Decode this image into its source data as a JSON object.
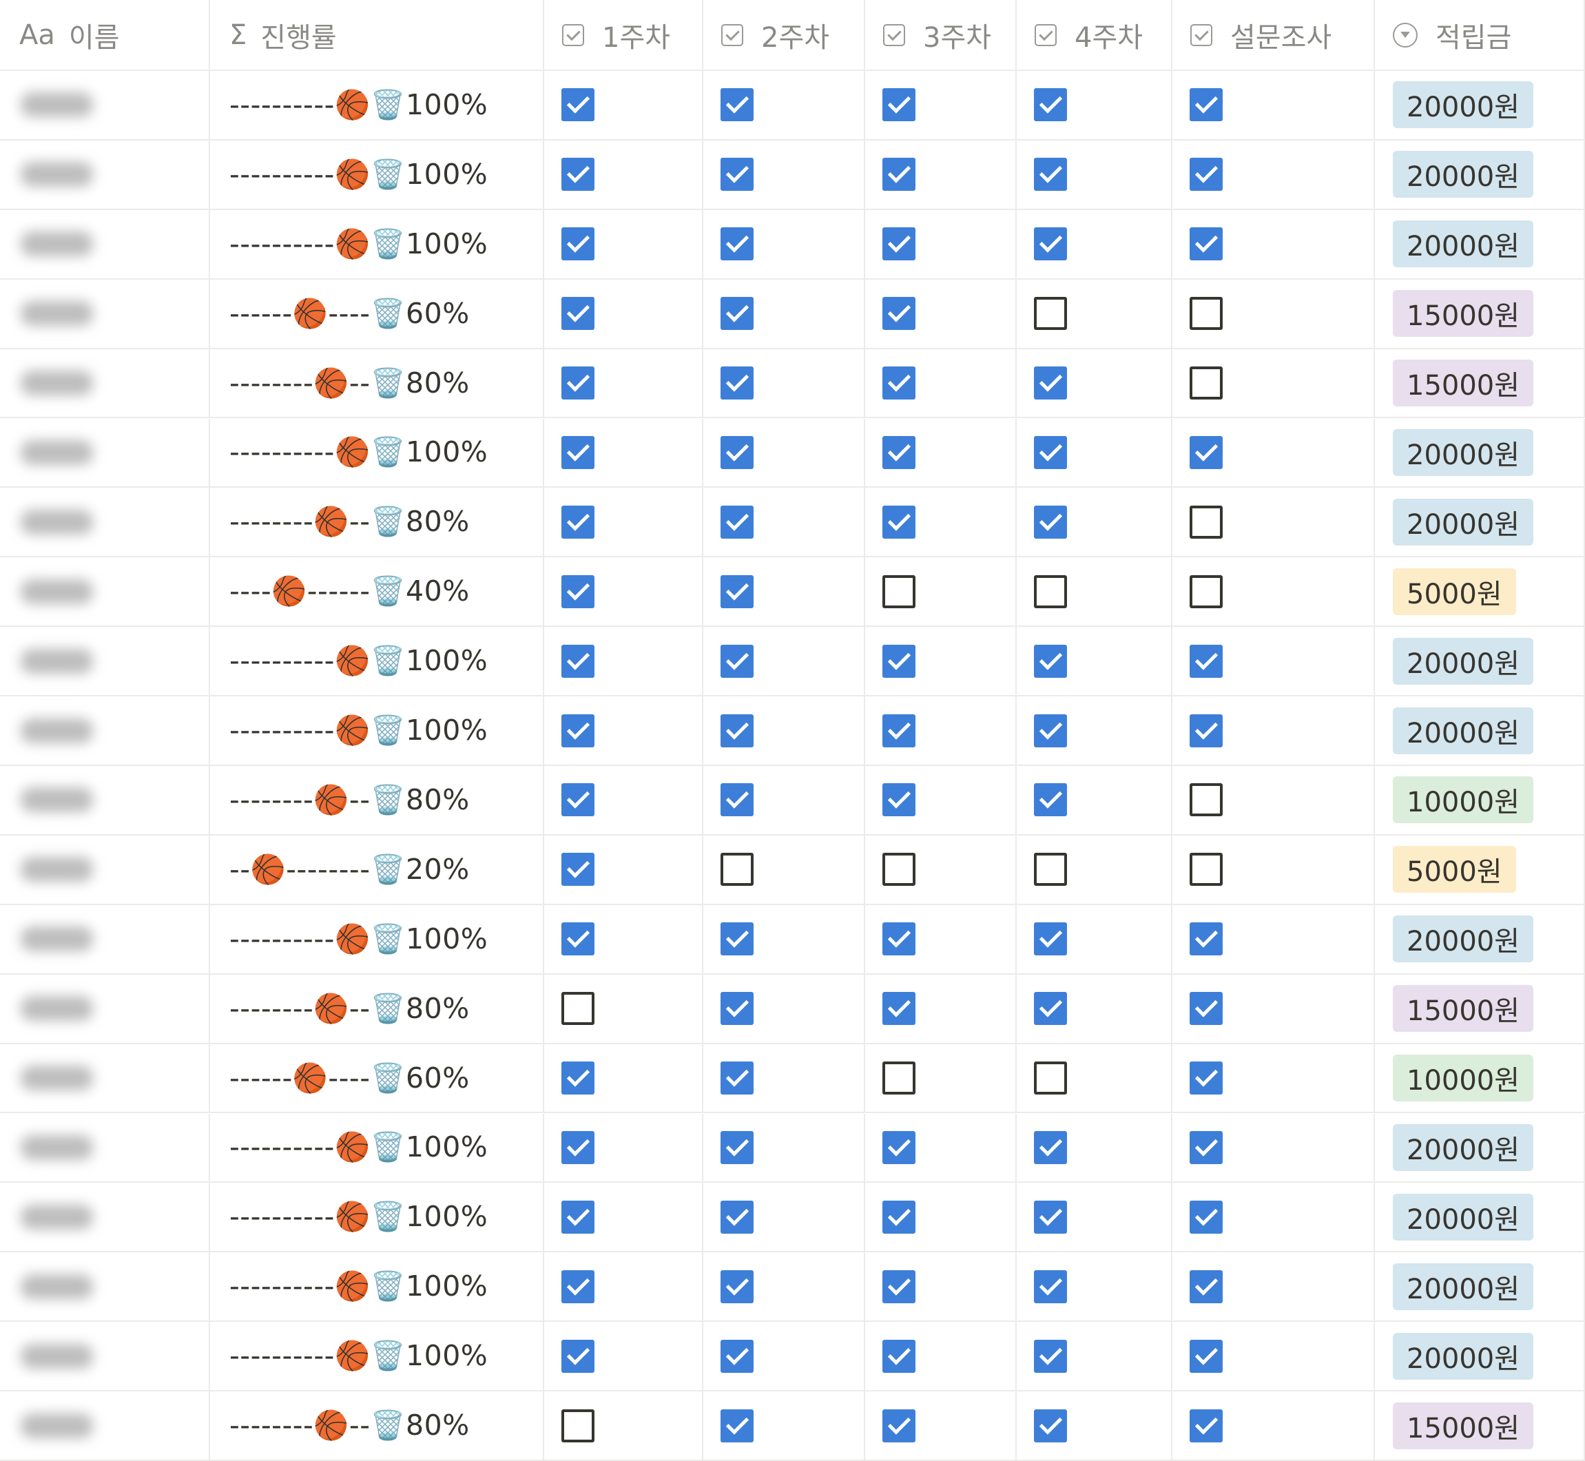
{
  "columns": [
    {
      "icon": "Aa",
      "label": "이름"
    },
    {
      "icon": "Σ",
      "label": "진행률"
    },
    {
      "label": "1주차"
    },
    {
      "label": "2주차"
    },
    {
      "label": "3주차"
    },
    {
      "label": "4주차"
    },
    {
      "label": "설문조사"
    },
    {
      "label": "적립금"
    }
  ],
  "rows": [
    {
      "progress": "----------🏀🗑️100%",
      "checks": [
        true,
        true,
        true,
        true,
        true
      ],
      "reward": "20000원",
      "reward_color": "#d3e5ef"
    },
    {
      "progress": "----------🏀🗑️100%",
      "checks": [
        true,
        true,
        true,
        true,
        true
      ],
      "reward": "20000원",
      "reward_color": "#d3e5ef"
    },
    {
      "progress": "----------🏀🗑️100%",
      "checks": [
        true,
        true,
        true,
        true,
        true
      ],
      "reward": "20000원",
      "reward_color": "#d3e5ef"
    },
    {
      "progress": "------🏀----🗑️60%",
      "checks": [
        true,
        true,
        true,
        false,
        false
      ],
      "reward": "15000원",
      "reward_color": "#e8deee"
    },
    {
      "progress": "--------🏀--🗑️80%",
      "checks": [
        true,
        true,
        true,
        true,
        false
      ],
      "reward": "15000원",
      "reward_color": "#e8deee"
    },
    {
      "progress": "----------🏀🗑️100%",
      "checks": [
        true,
        true,
        true,
        true,
        true
      ],
      "reward": "20000원",
      "reward_color": "#d3e5ef"
    },
    {
      "progress": "--------🏀--🗑️80%",
      "checks": [
        true,
        true,
        true,
        true,
        false
      ],
      "reward": "20000원",
      "reward_color": "#d3e5ef"
    },
    {
      "progress": "----🏀------🗑️40%",
      "checks": [
        true,
        true,
        false,
        false,
        false
      ],
      "reward": "5000원",
      "reward_color": "#fdecc8"
    },
    {
      "progress": "----------🏀🗑️100%",
      "checks": [
        true,
        true,
        true,
        true,
        true
      ],
      "reward": "20000원",
      "reward_color": "#d3e5ef"
    },
    {
      "progress": "----------🏀🗑️100%",
      "checks": [
        true,
        true,
        true,
        true,
        true
      ],
      "reward": "20000원",
      "reward_color": "#d3e5ef"
    },
    {
      "progress": "--------🏀--🗑️80%",
      "checks": [
        true,
        true,
        true,
        true,
        false
      ],
      "reward": "10000원",
      "reward_color": "#dbeddb"
    },
    {
      "progress": "--🏀--------🗑️20%",
      "checks": [
        true,
        false,
        false,
        false,
        false
      ],
      "reward": "5000원",
      "reward_color": "#fdecc8"
    },
    {
      "progress": "----------🏀🗑️100%",
      "checks": [
        true,
        true,
        true,
        true,
        true
      ],
      "reward": "20000원",
      "reward_color": "#d3e5ef"
    },
    {
      "progress": "--------🏀--🗑️80%",
      "checks": [
        false,
        true,
        true,
        true,
        true
      ],
      "reward": "15000원",
      "reward_color": "#e8deee"
    },
    {
      "progress": "------🏀----🗑️60%",
      "checks": [
        true,
        true,
        false,
        false,
        true
      ],
      "reward": "10000원",
      "reward_color": "#dbeddb"
    },
    {
      "progress": "----------🏀🗑️100%",
      "checks": [
        true,
        true,
        true,
        true,
        true
      ],
      "reward": "20000원",
      "reward_color": "#d3e5ef"
    },
    {
      "progress": "----------🏀🗑️100%",
      "checks": [
        true,
        true,
        true,
        true,
        true
      ],
      "reward": "20000원",
      "reward_color": "#d3e5ef"
    },
    {
      "progress": "----------🏀🗑️100%",
      "checks": [
        true,
        true,
        true,
        true,
        true
      ],
      "reward": "20000원",
      "reward_color": "#d3e5ef"
    },
    {
      "progress": "----------🏀🗑️100%",
      "checks": [
        true,
        true,
        true,
        true,
        true
      ],
      "reward": "20000원",
      "reward_color": "#d3e5ef"
    },
    {
      "progress": "--------🏀--🗑️80%",
      "checks": [
        false,
        true,
        true,
        true,
        true
      ],
      "reward": "15000원",
      "reward_color": "#e8deee"
    }
  ]
}
